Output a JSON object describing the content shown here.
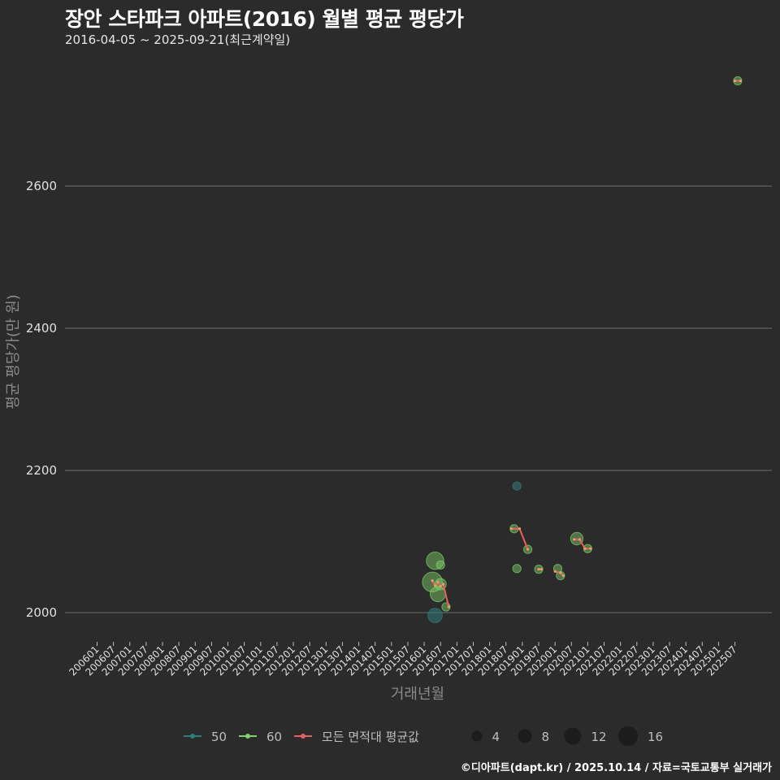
{
  "header": {
    "title": "장안 스타파크 아파트(2016) 월별 평균 평당가",
    "subtitle": "2016-04-05 ~ 2025-09-21(최근계약일)"
  },
  "footer": {
    "credit": "©디아파트(dapt.kr) / 2025.10.14 / 자료=국토교통부 실거래가"
  },
  "colors": {
    "background": "#2b2b2b",
    "grid": "#6e6e6e",
    "series_50": "#2e7d7a",
    "series_60": "#7ed36b",
    "series_avg": "#e8605e"
  },
  "chart_data": {
    "type": "scatter",
    "title": "장안 스타파크 아파트(2016) 월별 평균 평당가",
    "subtitle": "2016-04-05 ~ 2025-09-21(최근계약일)",
    "xlabel": "거래년월",
    "ylabel": "평균 평당가(만 원)",
    "ylim": [
      1960,
      2760
    ],
    "yticks": [
      2000,
      2200,
      2400,
      2600
    ],
    "grid": true,
    "xticks": [
      "200601",
      "200607",
      "200701",
      "200707",
      "200801",
      "200807",
      "200901",
      "200907",
      "201001",
      "201007",
      "201101",
      "201107",
      "201201",
      "201207",
      "201301",
      "201307",
      "201401",
      "201407",
      "201501",
      "201507",
      "201601",
      "201607",
      "201701",
      "201707",
      "201801",
      "201807",
      "201901",
      "201907",
      "202001",
      "202007",
      "202101",
      "202107",
      "202201",
      "202207",
      "202301",
      "202307",
      "202401",
      "202407",
      "202501",
      "202507"
    ],
    "legend": {
      "position": "bottom",
      "color_entries": [
        "50",
        "60",
        "모든 면적대 평균값"
      ],
      "size_entries": [
        4,
        8,
        12,
        16
      ]
    },
    "series": [
      {
        "name": "50",
        "color": "#2e7d7a",
        "points": [
          {
            "x": "201605",
            "y": 1996,
            "size": 6
          },
          {
            "x": "201811",
            "y": 2178,
            "size": 1
          }
        ]
      },
      {
        "name": "60",
        "color": "#7ed36b",
        "points": [
          {
            "x": "201604",
            "y": 2043,
            "size": 14
          },
          {
            "x": "201605",
            "y": 2073,
            "size": 10
          },
          {
            "x": "201606",
            "y": 2026,
            "size": 7
          },
          {
            "x": "201607",
            "y": 2067,
            "size": 1
          },
          {
            "x": "201607",
            "y": 2040,
            "size": 3
          },
          {
            "x": "201609",
            "y": 2008,
            "size": 1
          },
          {
            "x": "201810",
            "y": 2118,
            "size": 1
          },
          {
            "x": "201811",
            "y": 2062,
            "size": 1
          },
          {
            "x": "201903",
            "y": 2089,
            "size": 1
          },
          {
            "x": "201907",
            "y": 2061,
            "size": 1
          },
          {
            "x": "202002",
            "y": 2062,
            "size": 1
          },
          {
            "x": "202003",
            "y": 2052,
            "size": 1
          },
          {
            "x": "202009",
            "y": 2104,
            "size": 4
          },
          {
            "x": "202101",
            "y": 2090,
            "size": 1
          },
          {
            "x": "202508",
            "y": 2748,
            "size": 1
          }
        ]
      },
      {
        "name": "모든 면적대 평균값",
        "color": "#e8605e",
        "points": [
          {
            "x": "201604",
            "y": 2045
          },
          {
            "x": "201605",
            "y": 2038
          },
          {
            "x": "201606",
            "y": 2043
          },
          {
            "x": "201607",
            "y": 2037
          },
          {
            "x": "201608",
            "y": 2040
          },
          {
            "x": "201610",
            "y": 2008
          },
          {
            "x": "201809",
            "y": 2118
          },
          {
            "x": "201812",
            "y": 2118
          },
          {
            "x": "201903",
            "y": 2089
          },
          {
            "x": "201907",
            "y": 2061
          },
          {
            "x": "201908",
            "y": 2061
          },
          {
            "x": "202001",
            "y": 2058
          },
          {
            "x": "202003",
            "y": 2056
          },
          {
            "x": "202004",
            "y": 2052
          },
          {
            "x": "202008",
            "y": 2103
          },
          {
            "x": "202010",
            "y": 2103
          },
          {
            "x": "202012",
            "y": 2090
          },
          {
            "x": "202102",
            "y": 2090
          },
          {
            "x": "202507",
            "y": 2748
          },
          {
            "x": "202509",
            "y": 2748
          }
        ]
      }
    ]
  }
}
